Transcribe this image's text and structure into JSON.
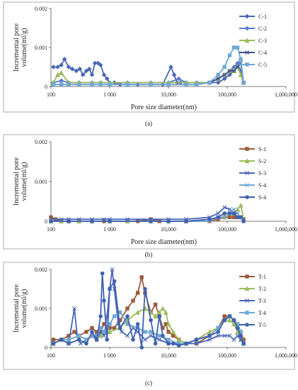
{
  "chart_data": [
    {
      "type": "line",
      "caption": "(a)",
      "xlabel": "Pore size diameter(nm)",
      "ylabel": [
        "Incremental pore",
        "volume(ml/g)"
      ],
      "xscale": "log",
      "xlim": [
        100,
        1000000
      ],
      "ylim": [
        0,
        0.002
      ],
      "x_tick_labels": [
        "100",
        "1 000",
        "10,000",
        "100,000",
        "1,000,000"
      ],
      "y_tick_labels": [
        "0",
        "0.001",
        "0.002"
      ],
      "grid": false,
      "legend_position": "right",
      "series": [
        {
          "name": "C-1",
          "color": "#4a66b8",
          "marker": "diamond",
          "x": [
            110,
            130,
            150,
            170,
            200,
            230,
            270,
            310,
            350,
            400,
            450,
            500,
            560,
            630,
            700,
            800,
            900,
            1000,
            1200,
            1500,
            2000,
            3000,
            5000,
            8000,
            11000,
            12500,
            14000,
            16000,
            20000,
            30000,
            50000,
            70000,
            90000,
            110000,
            130000,
            150000,
            170000,
            190000
          ],
          "y": [
            0.0005,
            0.0005,
            0.00055,
            0.0007,
            0.0005,
            0.00045,
            0.0004,
            0.00045,
            0.0003,
            0.0004,
            0.00045,
            0.0003,
            0.0006,
            0.0006,
            0.00055,
            0.0003,
            0.0002,
            0.0001,
            0.0001,
            5e-05,
            5e-05,
            5e-05,
            5e-05,
            5e-05,
            0.0005,
            0.0003,
            0.0001,
            0.0001,
            0.0001,
            0.0001,
            0.0001,
            0.0001,
            0.0002,
            0.0003,
            0.0004,
            0.0005,
            0.0004,
            0.0001
          ]
        },
        {
          "name": "C-2",
          "color": "#5a78d0",
          "marker": "diamond",
          "x": [
            110,
            150,
            200,
            300,
            500,
            700,
            1000,
            2000,
            5000,
            10000,
            15000,
            20000,
            30000,
            50000,
            70000,
            90000,
            110000,
            130000,
            150000,
            170000,
            190000
          ],
          "y": [
            0.0001,
            0.00015,
            0.0001,
            0.0001,
            0.0001,
            0.0001,
            0.0001,
            0.0001,
            0.0001,
            0.0001,
            0.0002,
            0.0001,
            0.0001,
            0.0001,
            0.0002,
            0.0003,
            0.0004,
            0.0005,
            0.0006,
            0.0004,
            0.0001
          ]
        },
        {
          "name": "C-3",
          "color": "#9bbb59",
          "marker": "triangle",
          "x": [
            110,
            130,
            150,
            200,
            300,
            500,
            700,
            1000,
            2000,
            5000,
            10000,
            20000,
            30000,
            50000,
            70000,
            90000,
            110000,
            130000,
            150000,
            170000,
            190000
          ],
          "y": [
            0.0001,
            0.0003,
            0.00035,
            0.0001,
            0.0001,
            0.0001,
            0.0001,
            0.0001,
            0.0001,
            0.0001,
            0.0001,
            0.0001,
            0.0001,
            0.0001,
            0.0002,
            0.0003,
            0.0004,
            0.0004,
            0.0005,
            0.0003,
            0.0001
          ]
        },
        {
          "name": "C-4",
          "color": "#3d4f8a",
          "marker": "x",
          "x": [
            110,
            150,
            200,
            300,
            500,
            700,
            1000,
            2000,
            5000,
            10000,
            20000,
            30000,
            50000,
            70000,
            90000,
            110000,
            130000,
            150000,
            170000,
            190000
          ],
          "y": [
            5e-05,
            5e-05,
            5e-05,
            5e-05,
            5e-05,
            5e-05,
            5e-05,
            5e-05,
            5e-05,
            5e-05,
            5e-05,
            5e-05,
            0.0001,
            0.0002,
            0.0003,
            0.0004,
            0.0004,
            0.0005,
            0.0006,
            0.0001
          ]
        },
        {
          "name": "C-5",
          "color": "#6fa8d6",
          "marker": "square",
          "x": [
            110,
            150,
            200,
            300,
            500,
            700,
            1000,
            2000,
            5000,
            10000,
            20000,
            30000,
            50000,
            70000,
            90000,
            110000,
            130000,
            150000,
            170000,
            190000
          ],
          "y": [
            5e-05,
            5e-05,
            5e-05,
            5e-05,
            5e-05,
            5e-05,
            5e-05,
            5e-05,
            5e-05,
            5e-05,
            5e-05,
            5e-05,
            0.0001,
            0.0003,
            0.0005,
            0.0008,
            0.001,
            0.001,
            0.0007,
            0.0001
          ]
        }
      ]
    },
    {
      "type": "line",
      "caption": "(b)",
      "xlabel": "Pore size diameter(nm)",
      "ylabel": [
        "Incremental pore",
        "volume(ml/g)"
      ],
      "xscale": "log",
      "xlim": [
        100,
        1000000
      ],
      "ylim": [
        0,
        0.002
      ],
      "x_tick_labels": [
        "100",
        "1 000",
        "10,000",
        "100,000",
        "1,000,000"
      ],
      "y_tick_labels": [
        "0",
        "0.001",
        "0.002"
      ],
      "grid": false,
      "legend_position": "right",
      "series": [
        {
          "name": "S-1",
          "color": "#9c5a3c",
          "marker": "square",
          "x": [
            100,
            120,
            150,
            200,
            300,
            500,
            800,
            1000,
            2000,
            3000,
            5000,
            7000,
            10000,
            20000,
            50000,
            70000,
            90000,
            110000,
            130000,
            150000,
            170000,
            190000
          ],
          "y": [
            0.0001,
            5e-05,
            0,
            0,
            0,
            0,
            0,
            0,
            0,
            0,
            5e-05,
            0,
            0,
            0,
            0,
            5e-05,
            0.0001,
            0.0001,
            0.0001,
            0.0001,
            0.0001,
            5e-05
          ]
        },
        {
          "name": "S-2",
          "color": "#9bbb59",
          "marker": "triangle",
          "x": [
            100,
            150,
            200,
            300,
            500,
            1000,
            2000,
            5000,
            10000,
            20000,
            50000,
            70000,
            90000,
            110000,
            130000,
            150000,
            170000,
            190000
          ],
          "y": [
            0,
            0,
            0,
            0,
            0,
            0,
            0,
            0,
            0,
            0,
            5e-05,
            0.0001,
            0.0001,
            0.0002,
            0.0002,
            0.0003,
            0.0004,
            5e-05
          ]
        },
        {
          "name": "S-3",
          "color": "#4a66b8",
          "marker": "x",
          "x": [
            100,
            150,
            200,
            300,
            500,
            800,
            1000,
            2000,
            5000,
            10000,
            20000,
            50000,
            70000,
            90000,
            110000,
            130000,
            150000,
            170000,
            190000
          ],
          "y": [
            5e-05,
            5e-05,
            5e-05,
            5e-05,
            5e-05,
            5e-05,
            5e-05,
            5e-05,
            5e-05,
            5e-05,
            5e-05,
            0.0001,
            0.0002,
            0.00035,
            0.0003,
            0.0002,
            0.0002,
            0.0001,
            5e-05
          ]
        },
        {
          "name": "S-4",
          "color": "#6fa8d6",
          "marker": "x",
          "x": [
            100,
            200,
            500,
            1000,
            5000,
            10000,
            20000,
            50000,
            70000,
            90000,
            110000,
            130000,
            150000,
            170000,
            190000
          ],
          "y": [
            0,
            0,
            0,
            0,
            0,
            0,
            0,
            0,
            0.0001,
            0.0001,
            0.0002,
            0.0003,
            0.0002,
            0.0001,
            0
          ]
        },
        {
          "name": "S-4",
          "color": "#4060b0",
          "marker": "circle",
          "x": [
            100,
            200,
            500,
            1000,
            5000,
            10000,
            20000,
            50000,
            70000,
            90000,
            110000,
            130000,
            150000,
            170000,
            190000
          ],
          "y": [
            0,
            0,
            0,
            0,
            0,
            0,
            0,
            5e-05,
            0.0001,
            0.0002,
            0.0002,
            0.0002,
            0.0001,
            0.0001,
            0
          ]
        }
      ]
    },
    {
      "type": "line",
      "caption": "(c)",
      "xlabel": "",
      "ylabel": [
        "Incremental pore",
        "volume(ml/g)"
      ],
      "xscale": "log",
      "xlim": [
        100,
        1000000
      ],
      "ylim": [
        0,
        0.002
      ],
      "x_tick_labels": [
        "100",
        "1 000",
        "10,000",
        "100,000",
        "1,000,000"
      ],
      "y_tick_labels": [
        "0",
        "0.001",
        "0.002"
      ],
      "grid": false,
      "legend_position": "right",
      "series": [
        {
          "name": "T-1",
          "color": "#9c5a3c",
          "marker": "square",
          "x": [
            110,
            150,
            200,
            250,
            300,
            400,
            500,
            600,
            700,
            800,
            1000,
            1200,
            1500,
            2000,
            2500,
            3000,
            3500,
            4000,
            5000,
            6000,
            7000,
            8000,
            9000,
            10000,
            12000,
            15000,
            20000,
            30000,
            50000,
            70000,
            90000,
            110000,
            130000,
            150000,
            170000,
            190000
          ],
          "y": [
            0.0002,
            0.0002,
            0.0003,
            0.0004,
            0.0003,
            0.0004,
            0.0005,
            0.0004,
            0.0004,
            0.0006,
            0.0005,
            0.0005,
            0.0007,
            0.001,
            0.0012,
            0.0014,
            0.0018,
            0.0014,
            0.0009,
            0.0011,
            0.0008,
            0.0005,
            0.0006,
            0.0004,
            0.0003,
            0.0002,
            0.0001,
            0.0001,
            0.0003,
            0.0005,
            0.0008,
            0.0008,
            0.0007,
            0.0006,
            0.0004,
            0.0002
          ]
        },
        {
          "name": "T-2",
          "color": "#9bbb59",
          "marker": "triangle",
          "x": [
            110,
            150,
            200,
            300,
            400,
            500,
            700,
            1000,
            1500,
            2000,
            3000,
            4000,
            5000,
            6000,
            7000,
            8000,
            9000,
            10000,
            12000,
            15000,
            20000,
            30000,
            50000,
            70000,
            90000,
            110000,
            130000,
            150000,
            170000,
            190000
          ],
          "y": [
            0.0001,
            0.0002,
            0.0002,
            0.0003,
            0.0002,
            0.0003,
            0.0003,
            0.0004,
            0.0005,
            0.0007,
            0.0009,
            0.001,
            0.0009,
            0.0008,
            0.0009,
            0.001,
            0.0009,
            0.0006,
            0.0004,
            0.0002,
            0.0001,
            0.0002,
            0.0004,
            0.0005,
            0.0007,
            0.0007,
            0.0006,
            0.0004,
            0.0002,
            0.0001
          ]
        },
        {
          "name": "T-3",
          "color": "#4a66b8",
          "marker": "x",
          "x": [
            110,
            150,
            200,
            250,
            280,
            320,
            400,
            500,
            600,
            700,
            800,
            900,
            1000,
            1100,
            1200,
            1400,
            1600,
            2000,
            2500,
            3000,
            4000,
            5000,
            7000,
            10000,
            15000,
            20000,
            30000,
            50000,
            70000,
            90000,
            110000,
            130000,
            150000,
            170000,
            190000
          ],
          "y": [
            0.0001,
            0.0002,
            0.0001,
            0.001,
            0.0003,
            0.0001,
            0.0002,
            0.0003,
            0.0002,
            0.0004,
            0.0003,
            0.0008,
            0.0015,
            0.002,
            0.0015,
            0.0006,
            0.0004,
            0.0003,
            0.0005,
            0.0004,
            0.0002,
            0.0003,
            0.0002,
            0.0001,
            0.0001,
            0.0001,
            0.0001,
            0.0002,
            0.0003,
            0.0003,
            0.0003,
            0.0002,
            0.0003,
            0.0002,
            0.0001
          ]
        },
        {
          "name": "T-4",
          "color": "#6fa8d6",
          "marker": "square",
          "x": [
            110,
            150,
            200,
            300,
            400,
            500,
            600,
            700,
            800,
            900,
            1000,
            1200,
            1500,
            2000,
            3000,
            4000,
            5000,
            7000,
            10000,
            15000,
            20000,
            30000,
            50000,
            70000,
            90000,
            110000,
            130000,
            150000,
            170000,
            190000
          ],
          "y": [
            0.0001,
            0.0002,
            0.0002,
            0.0003,
            0.0002,
            0.0003,
            0.0003,
            0.0005,
            0.0004,
            0.0005,
            0.0006,
            0.0008,
            0.0009,
            0.0006,
            0.0005,
            0.0004,
            0.0004,
            0.0003,
            0.0002,
            0.0001,
            0.0001,
            0.0002,
            0.0003,
            0.0005,
            0.0007,
            0.0008,
            0.0007,
            0.0006,
            0.0004,
            0.0001
          ]
        },
        {
          "name": "T-5",
          "color": "#4060b0",
          "marker": "circle",
          "x": [
            110,
            150,
            200,
            300,
            400,
            500,
            600,
            700,
            750,
            800,
            900,
            1000,
            1200,
            1500,
            2000,
            2500,
            3000,
            3500,
            4000,
            5000,
            6000,
            7000,
            8000,
            10000,
            12000,
            15000,
            20000,
            30000,
            50000,
            70000,
            90000,
            110000,
            130000,
            150000,
            170000,
            190000
          ],
          "y": [
            0.0001,
            0.0002,
            0.0001,
            0.0002,
            0.0001,
            0.0004,
            0.0002,
            0.0008,
            0.0019,
            0.0012,
            0.0002,
            0.0015,
            0.0017,
            0.0005,
            0.0008,
            0.0002,
            0.0006,
            0.0,
            0.0015,
            0.0007,
            0.0001,
            0.0008,
            0.0003,
            0.0001,
            0.0001,
            5e-05,
            0.0001,
            0.0002,
            0.0003,
            0.0004,
            0.0007,
            0.0008,
            0.0007,
            0.0005,
            0.0003,
            0.0001
          ]
        }
      ]
    }
  ]
}
